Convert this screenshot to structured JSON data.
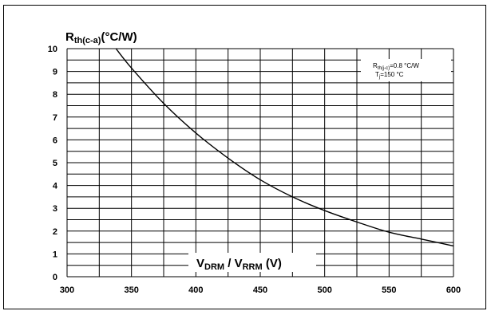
{
  "chart_data": {
    "type": "line",
    "y_label": {
      "main": "R",
      "sub": "th(c-a)",
      "unit": "(°C/W)"
    },
    "x_label": {
      "v1_main": "V",
      "v1_sub": "DRM",
      "sep": " / ",
      "v2_main": "V",
      "v2_sub": "RRM",
      "unit": " (V)"
    },
    "annotation": {
      "line1_main": "R",
      "line1_sub": "th(j-c)",
      "line1_value": "=0.8 °C/W",
      "line2_main": "T",
      "line2_sub": "j",
      "line2_value": "=150 °C"
    },
    "xlim": [
      300,
      600
    ],
    "ylim": [
      0,
      10
    ],
    "x_ticks": [
      300,
      350,
      400,
      450,
      500,
      550,
      600
    ],
    "y_ticks": [
      0,
      1,
      2,
      3,
      4,
      5,
      6,
      7,
      8,
      9,
      10
    ],
    "grid": true,
    "series": [
      {
        "x": [
          338,
          350,
          375,
          400,
          425,
          450,
          475,
          500,
          525,
          550,
          575,
          600
        ],
        "y": [
          10.0,
          9.15,
          7.6,
          6.3,
          5.2,
          4.25,
          3.5,
          2.9,
          2.4,
          1.95,
          1.65,
          1.35
        ]
      }
    ]
  }
}
